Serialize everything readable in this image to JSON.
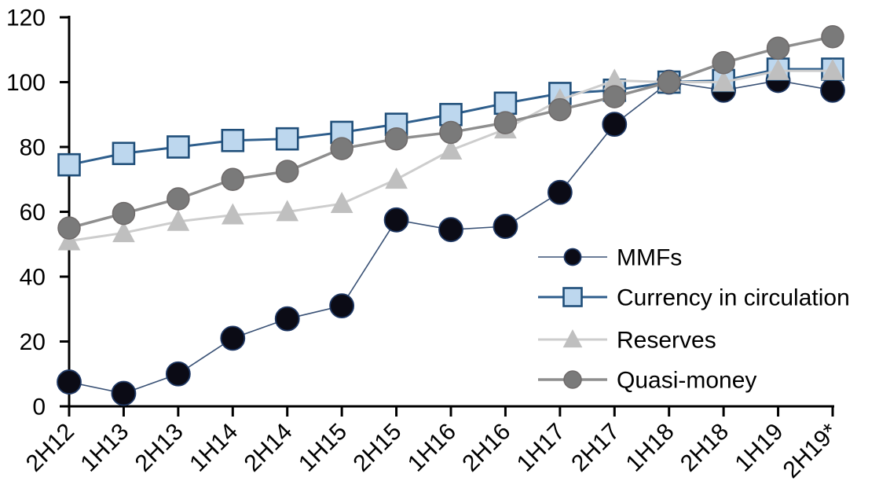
{
  "chart_data": {
    "type": "line",
    "title": "",
    "xlabel": "",
    "ylabel": "",
    "categories": [
      "2H12",
      "1H13",
      "2H13",
      "1H14",
      "2H14",
      "1H15",
      "2H15",
      "1H16",
      "2H16",
      "1H17",
      "2H17",
      "1H18",
      "2H18",
      "1H19",
      "2H19*"
    ],
    "series": [
      {
        "name": "MMFs",
        "marker": "circle",
        "values": [
          7.5,
          4,
          10,
          21,
          27,
          31,
          57.5,
          54.5,
          55.5,
          66,
          87,
          100,
          97.5,
          100.5,
          97.5
        ],
        "colors": {
          "line": "#3a5276",
          "fill": "#0b0b15",
          "stroke": "#1f3864"
        }
      },
      {
        "name": "Currency in circulation",
        "marker": "square",
        "values": [
          74.5,
          78,
          80,
          82,
          82.5,
          84.5,
          87,
          90,
          93.5,
          96.5,
          97.5,
          100,
          100.5,
          104,
          104
        ],
        "colors": {
          "line": "#2e5e8c",
          "fill": "#bdd7ee",
          "stroke": "#1f4e79"
        }
      },
      {
        "name": "Reserves",
        "marker": "triangle",
        "values": [
          51,
          53.5,
          57,
          59,
          60,
          62.5,
          70,
          79,
          85.5,
          94.5,
          100.5,
          100,
          100,
          103.5,
          103.5
        ],
        "colors": {
          "line": "#cdcdcd",
          "fill": "#bfbfbf",
          "stroke": "#bfbfbf"
        }
      },
      {
        "name": "Quasi-money",
        "marker": "circle",
        "values": [
          55,
          59.5,
          64,
          70,
          72.5,
          79.5,
          82.5,
          84.5,
          87.5,
          91.5,
          95.5,
          100,
          106,
          110.5,
          114
        ],
        "colors": {
          "line": "#8e8e8e",
          "fill": "#7a7a7a",
          "stroke": "#6e6a6a"
        }
      }
    ],
    "ylim": [
      0,
      120
    ],
    "yticks": [
      0,
      20,
      40,
      60,
      80,
      100,
      120
    ],
    "legend_position": "center-right",
    "legend_labels": [
      "MMFs",
      "Currency in circulation",
      "Reserves",
      "Quasi-money"
    ],
    "grid": false,
    "axis_color": "#000000",
    "text_color": "#000000",
    "background": "#ffffff"
  }
}
